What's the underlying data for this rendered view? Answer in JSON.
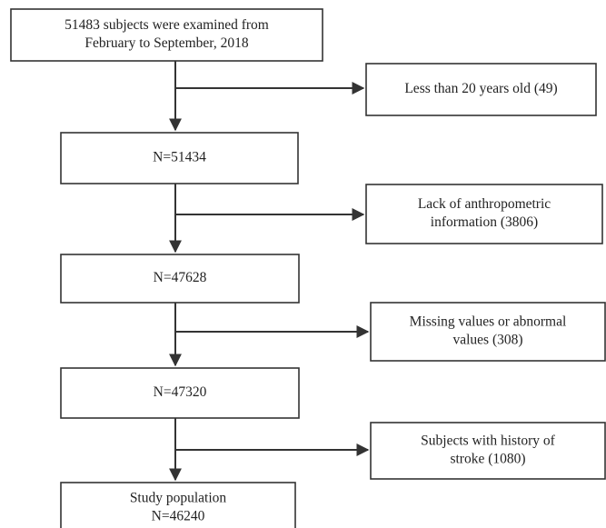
{
  "nodes": [
    {
      "lines": [
        "51483 subjects were examined from",
        "February to September,  2018"
      ]
    },
    {
      "lines": [
        "N=51434"
      ]
    },
    {
      "lines": [
        "N=47628"
      ]
    },
    {
      "lines": [
        "N=47320"
      ]
    },
    {
      "lines": [
        "Study population",
        "N=46240"
      ]
    }
  ],
  "exclusions": [
    {
      "lines": [
        "Less than 20 years old (49)"
      ]
    },
    {
      "lines": [
        "Lack of  anthropometric",
        "information (3806)"
      ]
    },
    {
      "lines": [
        "Missing values or  abnormal",
        "values (308)"
      ]
    },
    {
      "lines": [
        "Subjects with history of",
        "stroke (1080)"
      ]
    }
  ]
}
